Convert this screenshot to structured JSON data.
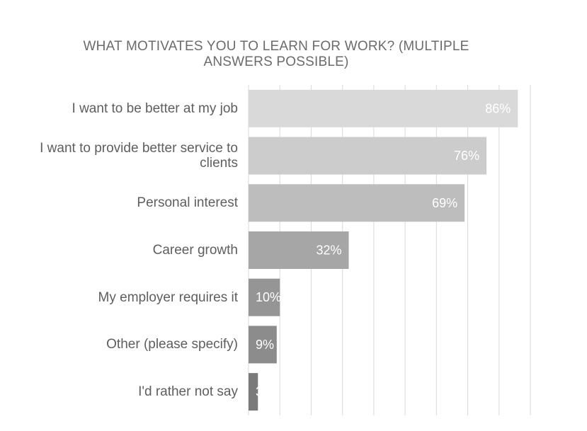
{
  "chart_data": {
    "type": "bar",
    "orientation": "horizontal",
    "title_line1": "WHAT MOTIVATES YOU TO LEARN FOR WORK? (MULTIPLE",
    "title_line2": "ANSWERS POSSIBLE)",
    "categories": [
      [
        "I want to be better at my job"
      ],
      [
        "I want to provide better service to",
        "clients"
      ],
      [
        "Personal interest"
      ],
      [
        "Career growth"
      ],
      [
        "My employer requires it"
      ],
      [
        "Other (please specify)"
      ],
      [
        "I'd rather not say"
      ]
    ],
    "values": [
      86,
      76,
      69,
      32,
      10,
      9,
      3
    ],
    "value_labels": [
      "86%",
      "76%",
      "69%",
      "32%",
      "10%",
      "9%",
      "3%"
    ],
    "xlim": [
      0,
      90
    ],
    "grid": true,
    "legend": "none",
    "colors": [
      "#d9d9d9",
      "#cccccc",
      "#bdbdbd",
      "#a6a6a6",
      "#959595",
      "#8c8c8c",
      "#7a7a7a"
    ],
    "gridline_color": "#d9d9d9",
    "label_color": "#ffffff"
  }
}
